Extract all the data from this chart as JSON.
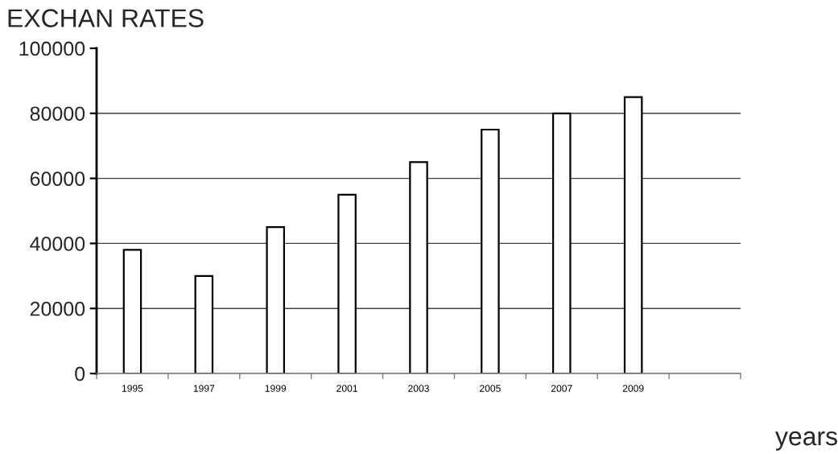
{
  "chart_data": {
    "type": "bar",
    "title": "EXCHAN RATES",
    "xlabel": "years",
    "categories": [
      "1995",
      "1997",
      "1999",
      "2001",
      "2003",
      "2005",
      "2007",
      "2009",
      null
    ],
    "values": [
      38000,
      30000,
      45000,
      55000,
      65000,
      75000,
      80000,
      85000,
      null
    ],
    "color": "#ffffff",
    "ylim": [
      0,
      100000
    ],
    "yticks": [
      0,
      20000,
      40000,
      60000,
      80000,
      100000
    ],
    "grid": "y"
  }
}
